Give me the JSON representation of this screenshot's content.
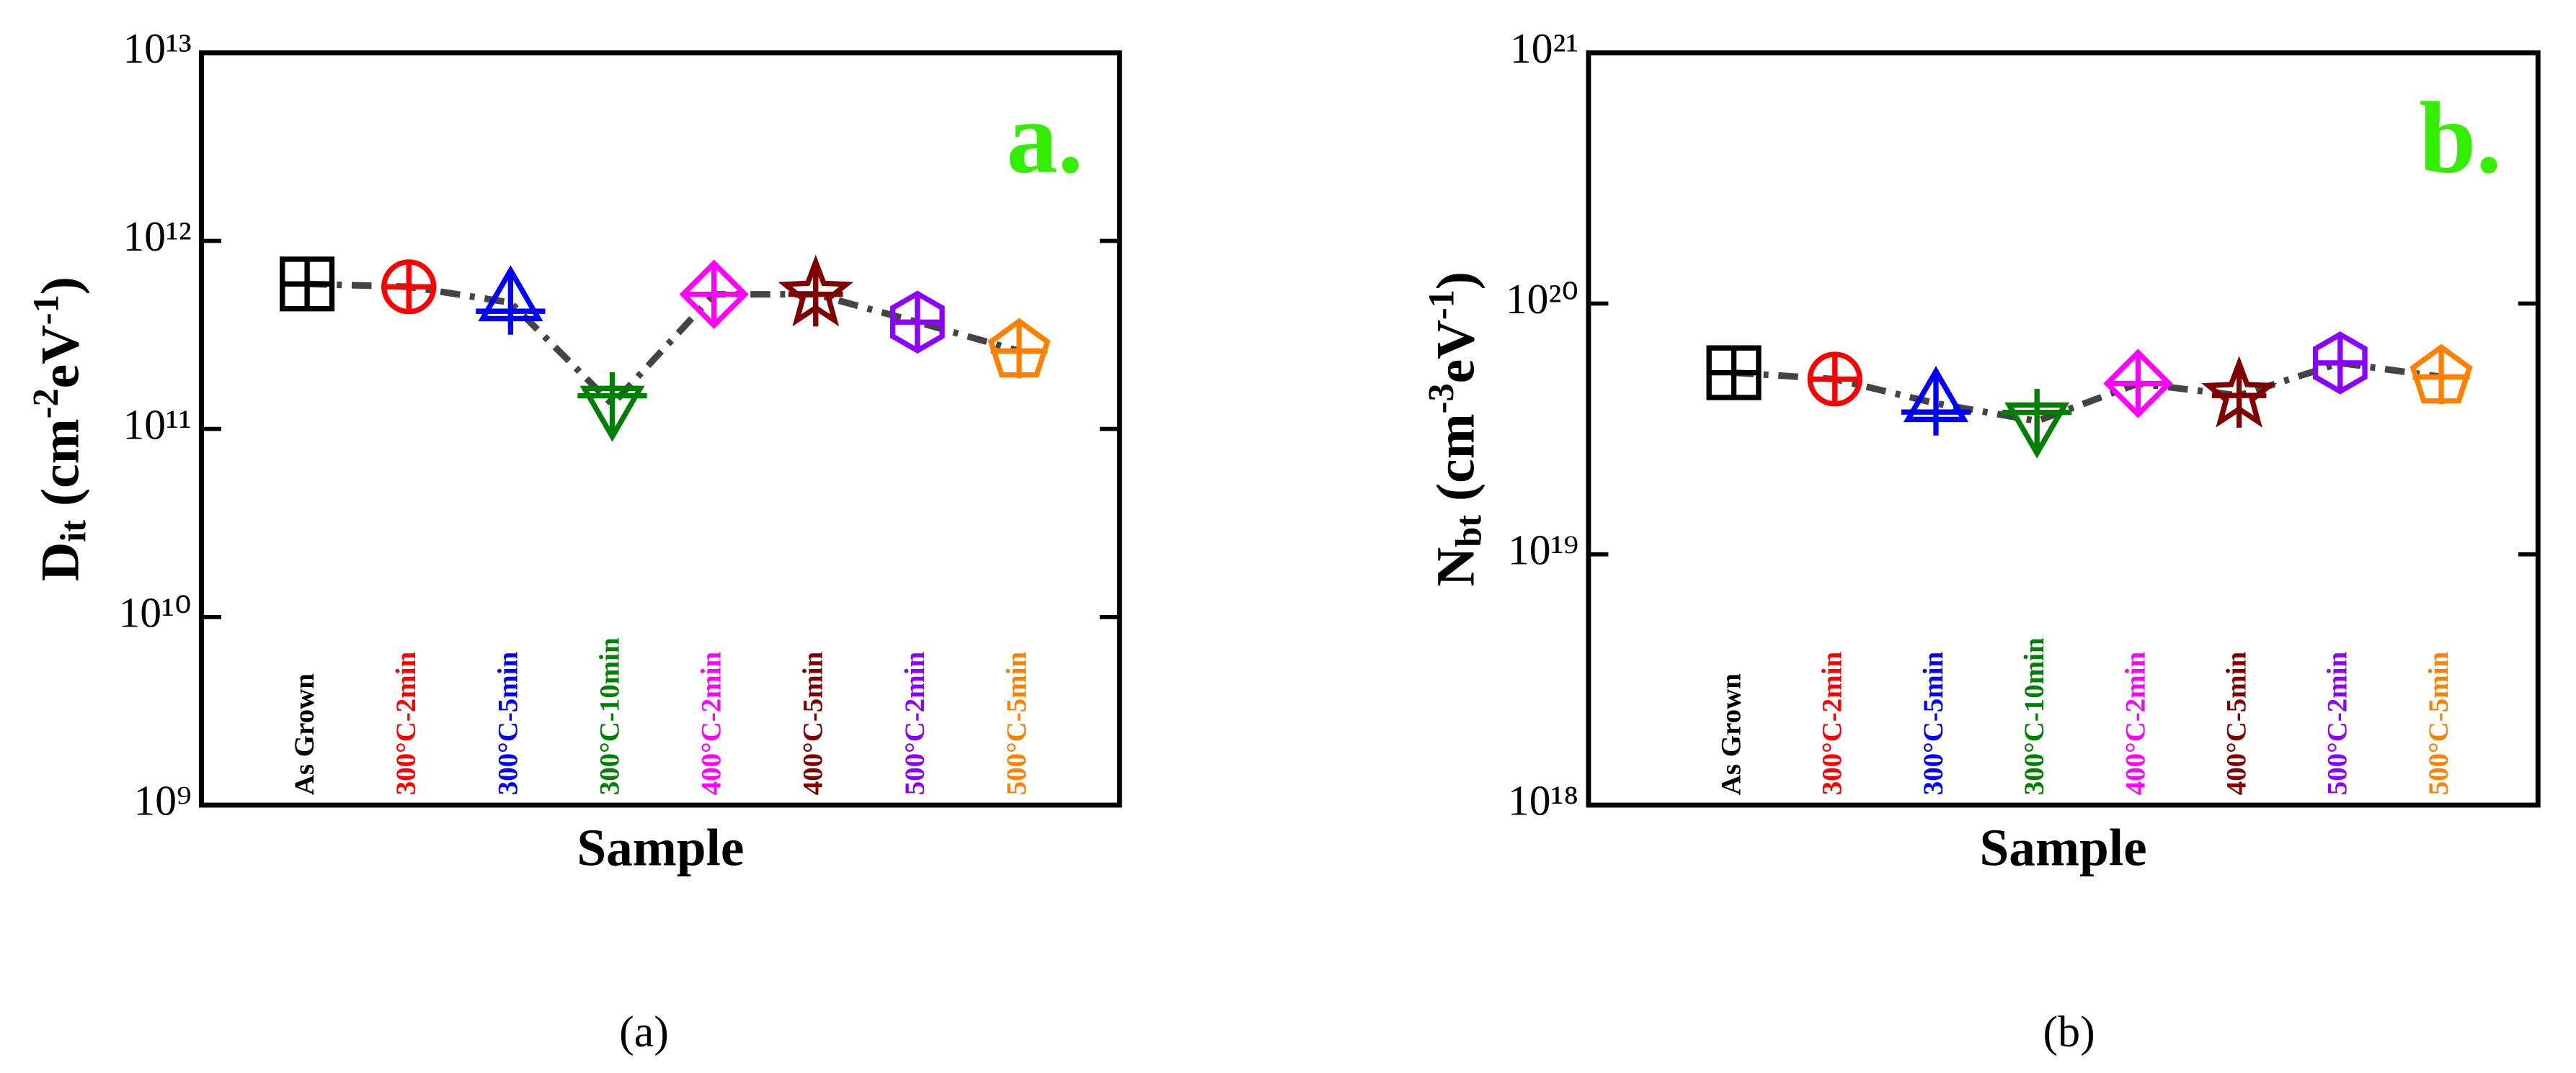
{
  "chart_data": [
    {
      "type": "line",
      "panel_label": "a.",
      "caption": "(a)",
      "xlabel": "Sample",
      "ylabel": [
        {
          "text": "D",
          "style": "normal"
        },
        {
          "text": "it",
          "style": "sub"
        },
        {
          "text": " (cm",
          "style": "normal"
        },
        {
          "text": "-2",
          "style": "sup"
        },
        {
          "text": "eV",
          "style": "normal"
        },
        {
          "text": "-1",
          "style": "sup"
        },
        {
          "text": ")",
          "style": "normal"
        }
      ],
      "categories": [
        "As Grown",
        "300°C-2min",
        "300°C-5min",
        "300°C-10min",
        "400°C-2min",
        "400°C-5min",
        "500°C-2min",
        "500°C-5min"
      ],
      "category_colors": [
        "#000000",
        "#ff0000",
        "#0000ff",
        "#008000",
        "#ff00ff",
        "#800000",
        "#8b00ff",
        "#ff8000"
      ],
      "markers": [
        "square",
        "circle",
        "triangle-up",
        "triangle-down",
        "diamond",
        "star",
        "hexagon",
        "pentagon"
      ],
      "values": [
        590000000000.0,
        570000000000.0,
        470000000000.0,
        135000000000.0,
        520000000000.0,
        520000000000.0,
        370000000000.0,
        260000000000.0
      ],
      "line_color": "#444444",
      "log_y": true,
      "ylim": [
        1000000000.0,
        10000000000000.0
      ],
      "yticks": [
        {
          "value": 1000000000.0,
          "label": "10⁹"
        },
        {
          "value": 10000000000.0,
          "label": "10¹⁰"
        },
        {
          "value": 100000000000.0,
          "label": "10¹¹"
        },
        {
          "value": 1000000000000.0,
          "label": "10¹²"
        },
        {
          "value": 10000000000000.0,
          "label": "10¹³"
        }
      ]
    },
    {
      "type": "line",
      "panel_label": "b.",
      "caption": "(b)",
      "xlabel": "Sample",
      "ylabel": [
        {
          "text": "N",
          "style": "normal"
        },
        {
          "text": "bt",
          "style": "sub"
        },
        {
          "text": " (cm",
          "style": "normal"
        },
        {
          "text": "-3",
          "style": "sup"
        },
        {
          "text": "eV",
          "style": "normal"
        },
        {
          "text": "-1",
          "style": "sup"
        },
        {
          "text": ")",
          "style": "normal"
        }
      ],
      "categories": [
        "As Grown",
        "300°C-2min",
        "300°C-5min",
        "300°C-10min",
        "400°C-2min",
        "400°C-5min",
        "500°C-2min",
        "500°C-5min"
      ],
      "category_colors": [
        "#000000",
        "#ff0000",
        "#0000ff",
        "#008000",
        "#ff00ff",
        "#800000",
        "#8b00ff",
        "#ff8000"
      ],
      "markers": [
        "square",
        "circle",
        "triangle-up",
        "triangle-down",
        "diamond",
        "star",
        "hexagon",
        "pentagon"
      ],
      "values": [
        5.3e+19,
        5e+19,
        4e+19,
        3.4e+19,
        4.8e+19,
        4.3e+19,
        5.8e+19,
        5.1e+19
      ],
      "line_color": "#444444",
      "log_y": true,
      "ylim": [
        1e+18,
        1e+21
      ],
      "yticks": [
        {
          "value": 1e+18,
          "label": "10¹⁸"
        },
        {
          "value": 1e+19,
          "label": "10¹⁹"
        },
        {
          "value": 1e+20,
          "label": "10²⁰"
        },
        {
          "value": 1e+21,
          "label": "10²¹"
        }
      ]
    }
  ]
}
